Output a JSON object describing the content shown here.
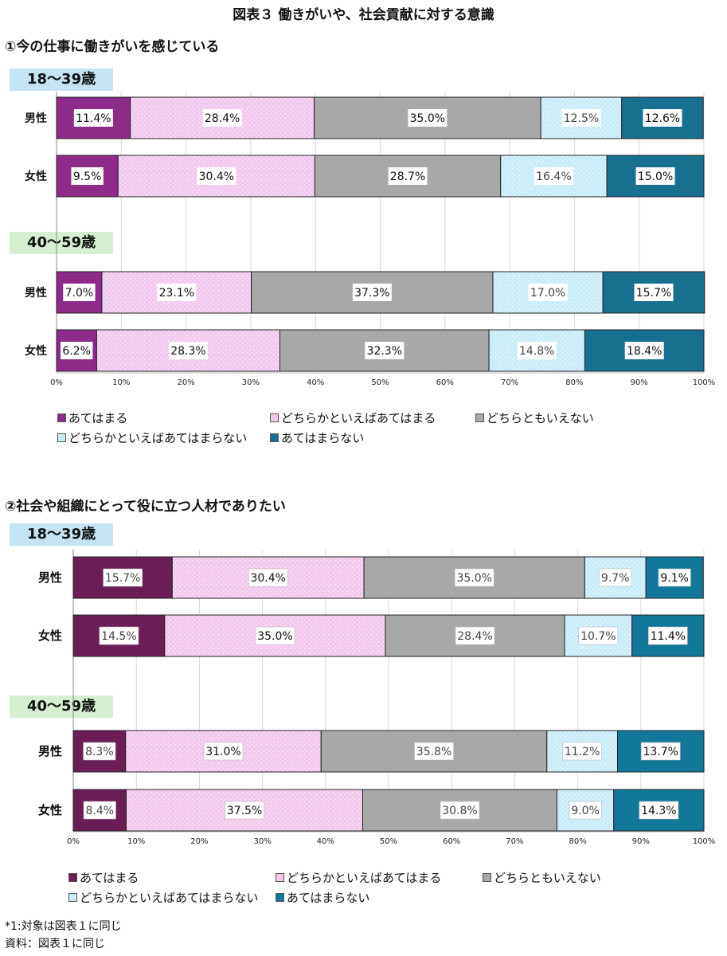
{
  "title": "図表３ 働きがいや、社会貢献に対する意識",
  "categories": [
    "あてはまる",
    "どちらかといえばあてはまる",
    "どちらともいえない",
    "どちらかといえばあてはまらない",
    "あてはまらない"
  ],
  "colors": {
    "c1": "#8e2a87",
    "c2": "#f1c9ee",
    "c3": "#a8a8a8",
    "c4": "#c9ecf8",
    "c5": "#17708f",
    "c1b": "#6b1d56",
    "c2b": "#f2c9ec",
    "c3b": "#a8a8a8",
    "c4b": "#c9ecf8",
    "c5b": "#12789a"
  },
  "chart_data": [
    {
      "type": "bar",
      "orientation": "horizontal",
      "stacked": "100%",
      "title": "①今の仕事に働きがいを感じている",
      "series_names": [
        "あてはまる",
        "どちらかといえばあてはまる",
        "どちらともいえない",
        "どちらかといえばあてはまらない",
        "あてはまらない"
      ],
      "groups": [
        {
          "label": "18～39歳",
          "rows": [
            {
              "label": "男性",
              "values": [
                11.4,
                28.4,
                35.0,
                12.5,
                12.6
              ]
            },
            {
              "label": "女性",
              "values": [
                9.5,
                30.4,
                28.7,
                16.4,
                15.0
              ]
            }
          ]
        },
        {
          "label": "40～59歳",
          "rows": [
            {
              "label": "男性",
              "values": [
                7.0,
                23.1,
                37.3,
                17.0,
                15.7
              ]
            },
            {
              "label": "女性",
              "values": [
                6.2,
                28.3,
                32.3,
                14.8,
                18.4
              ]
            }
          ]
        }
      ],
      "xlim": [
        0,
        100
      ],
      "xticks": [
        "0%",
        "10%",
        "20%",
        "30%",
        "40%",
        "50%",
        "60%",
        "70%",
        "80%",
        "90%",
        "100%"
      ],
      "grid": true,
      "legend_position": "bottom"
    },
    {
      "type": "bar",
      "orientation": "horizontal",
      "stacked": "100%",
      "title": "②社会や組織にとって役に立つ人材でありたい",
      "series_names": [
        "あてはまる",
        "どちらかといえばあてはまる",
        "どちらともいえない",
        "どちらかといえばあてはまらない",
        "あてはまらない"
      ],
      "groups": [
        {
          "label": "18～39歳",
          "rows": [
            {
              "label": "男性",
              "values": [
                15.7,
                30.4,
                35.0,
                9.7,
                9.1
              ]
            },
            {
              "label": "女性",
              "values": [
                14.5,
                35.0,
                28.4,
                10.7,
                11.4
              ]
            }
          ]
        },
        {
          "label": "40～59歳",
          "rows": [
            {
              "label": "男性",
              "values": [
                8.3,
                31.0,
                35.8,
                11.2,
                13.7
              ]
            },
            {
              "label": "女性",
              "values": [
                8.4,
                37.5,
                30.8,
                9.0,
                14.3
              ]
            }
          ]
        }
      ],
      "xlim": [
        0,
        100
      ],
      "xticks": [
        "0%",
        "10%",
        "20%",
        "30%",
        "40%",
        "50%",
        "60%",
        "70%",
        "80%",
        "90%",
        "100%"
      ],
      "grid": true,
      "legend_position": "bottom"
    }
  ],
  "notes": [
    "*1:対象は図表１に同じ",
    "資料：図表１に同じ"
  ]
}
